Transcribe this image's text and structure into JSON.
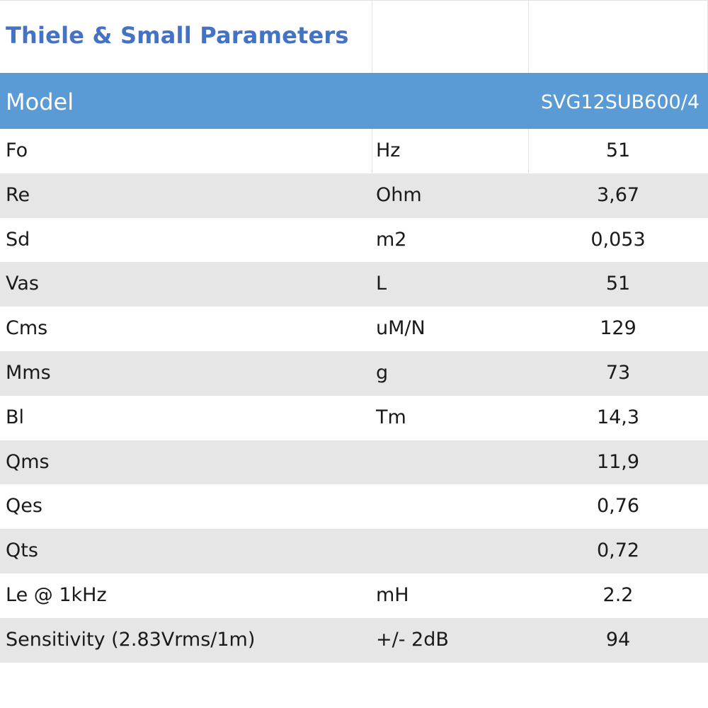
{
  "title": "Thiele & Small Parameters",
  "header": {
    "label": "Model",
    "value": "SVG12SUB600/4"
  },
  "colors": {
    "title": "#4472c4",
    "header_bg": "#5b9bd5",
    "stripe": "#e7e6e6"
  },
  "rows": [
    {
      "name": "Fo",
      "unit": "Hz",
      "value": "51"
    },
    {
      "name": "Re",
      "unit": "Ohm",
      "value": "3,67"
    },
    {
      "name": "Sd",
      "unit": "m2",
      "value": "0,053"
    },
    {
      "name": "Vas",
      "unit": "L",
      "value": "51"
    },
    {
      "name": "Cms",
      "unit": "uM/N",
      "value": "129"
    },
    {
      "name": "Mms",
      "unit": "g",
      "value": "73"
    },
    {
      "name": "Bl",
      "unit": "Tm",
      "value": "14,3"
    },
    {
      "name": "Qms",
      "unit": "",
      "value": "11,9"
    },
    {
      "name": "Qes",
      "unit": "",
      "value": "0,76"
    },
    {
      "name": "Qts",
      "unit": "",
      "value": "0,72"
    },
    {
      "name": "Le @ 1kHz",
      "unit": "mH",
      "value": "2.2"
    },
    {
      "name": "Sensitivity (2.83Vrms/1m)",
      "unit": " +/- 2dB",
      "value": "94"
    }
  ]
}
